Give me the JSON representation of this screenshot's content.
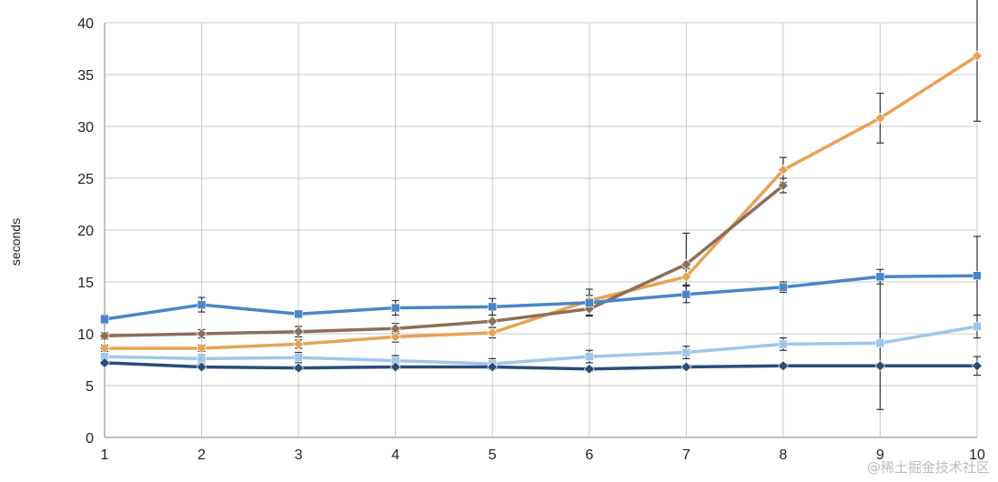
{
  "chart_data": {
    "type": "line",
    "title": "",
    "xlabel": "",
    "ylabel": "seconds",
    "x": [
      1,
      2,
      3,
      4,
      5,
      6,
      7,
      8,
      9,
      10
    ],
    "xlim": [
      1,
      10
    ],
    "ylim": [
      0,
      40
    ],
    "yticks": [
      0,
      5,
      10,
      15,
      20,
      25,
      30,
      35,
      40
    ],
    "grid": true,
    "legend": "none",
    "series": [
      {
        "color": "#e8a254",
        "marker": "diamond",
        "values": [
          8.6,
          8.6,
          9.0,
          9.7,
          10.1,
          13.2,
          15.5,
          25.8,
          30.8,
          36.8
        ],
        "errors": [
          0.3,
          0.3,
          0.4,
          0.5,
          0.5,
          0.5,
          0.8,
          1.2,
          2.4,
          6.3
        ]
      },
      {
        "color": "#8d6e5a",
        "marker": "diamond",
        "values": [
          9.8,
          10.0,
          10.2,
          10.5,
          11.2,
          12.4,
          16.7,
          24.3,
          null,
          null
        ],
        "errors": [
          0.3,
          0.4,
          0.5,
          0.5,
          0.6,
          0.6,
          3.0,
          0.7,
          null,
          null
        ]
      },
      {
        "color": "#4a86c8",
        "marker": "square",
        "values": [
          11.4,
          12.8,
          11.9,
          12.5,
          12.6,
          13.0,
          13.8,
          14.5,
          15.5,
          15.6
        ],
        "errors": [
          0.4,
          0.7,
          0.3,
          0.7,
          0.8,
          1.3,
          0.8,
          0.5,
          0.7,
          3.8
        ]
      },
      {
        "color": "#9ec7ea",
        "marker": "square",
        "values": [
          7.8,
          7.6,
          7.7,
          7.4,
          7.1,
          7.8,
          8.2,
          9.0,
          9.1,
          10.7
        ],
        "errors": [
          0.3,
          0.4,
          0.5,
          0.5,
          0.5,
          0.6,
          0.6,
          0.6,
          6.4,
          1.1
        ]
      },
      {
        "color": "#2a4d7a",
        "marker": "diamond",
        "values": [
          7.2,
          6.8,
          6.7,
          6.8,
          6.8,
          6.6,
          6.8,
          6.9,
          6.9,
          6.9
        ],
        "errors": [
          0.2,
          0.2,
          0.2,
          0.2,
          0.2,
          0.2,
          0.2,
          0.2,
          0.2,
          0.9
        ]
      }
    ]
  },
  "watermark": {
    "text": "@稀土掘金技术社区"
  }
}
